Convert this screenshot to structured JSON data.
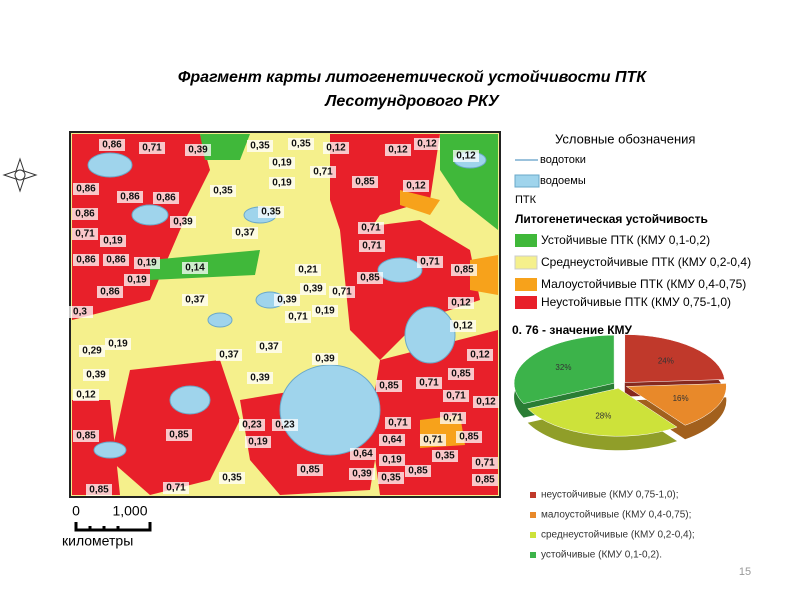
{
  "title": [
    "Фрагмент карты литогенетической устойчивости ПТК",
    "Лесотундрового РКУ"
  ],
  "map": {
    "labels": [
      "0,86",
      "0,71",
      "0,39",
      "0,35",
      "0,35",
      "0,12",
      "0,12",
      "0,12",
      "0,12",
      "0,19",
      "0,71",
      "0,85",
      "0,19",
      "0,86",
      "0,86",
      "0,86",
      "0,35",
      "0,12",
      "0,35",
      "0,39",
      "0,37",
      "0,86",
      "0,71",
      "0,19",
      "0,71",
      "0,71",
      "0,71",
      "0,85",
      "0,86",
      "0,86",
      "0,19",
      "0,14",
      "0,21",
      "0,85",
      "0,19",
      "0,39",
      "0,71",
      "0,86",
      "0,37",
      "0,39",
      "0,3",
      "0,71",
      "0,19",
      "0,12",
      "0,12",
      "0,19",
      "0,29",
      "0,37",
      "0,39",
      "0,37",
      "0,12",
      "0,39",
      "0,39",
      "0,85",
      "0,85",
      "0,71",
      "0,12",
      "0,71",
      "0,12",
      "0,85",
      "0,71",
      "0,23",
      "0,23",
      "0,71",
      "0,19",
      "0,64",
      "0,71",
      "0,85",
      "0,85",
      "0,64",
      "0,19",
      "0,35",
      "0,35",
      "0,85",
      "0,39",
      "0,35",
      "0,85",
      "0,71",
      "0,71",
      "0,85",
      "0,85"
    ],
    "scale": {
      "start": "0",
      "end": "1,000",
      "unit": "километры"
    }
  },
  "legend": {
    "title": "Условные обозначения",
    "streams": "водотоки",
    "water": "водоемы",
    "ptk": "ПТК",
    "heading": "Литогенетическая устойчивость",
    "items": [
      "Устойчивые ПТК (КМУ 0,1-0,2)",
      "Среднеустойчивые ПТК (КМУ 0,2-0,4)",
      "Малоустойчивые ПТК (КМУ 0,4-0,75)",
      "Неустойчивые ПТК (КМУ 0,75-1,0)"
    ],
    "note": "0. 76 - значение КМУ"
  },
  "chart_data": {
    "type": "pie",
    "categories": [
      "неустойчивые (КМУ 0,75-1,0);",
      "малоустойчивые (КМУ 0,4-0,75);",
      "среднеустойчивые (КМУ 0,2-0,4);",
      "устойчивые (КМУ 0,1-0,2)."
    ],
    "values": [
      24,
      16,
      28,
      32
    ],
    "value_labels": [
      "24%",
      "16%",
      "28%",
      "32%"
    ],
    "colors": [
      "#c0392b",
      "#e8892a",
      "#cde23a",
      "#3cb34a"
    ]
  },
  "page_number": "15"
}
